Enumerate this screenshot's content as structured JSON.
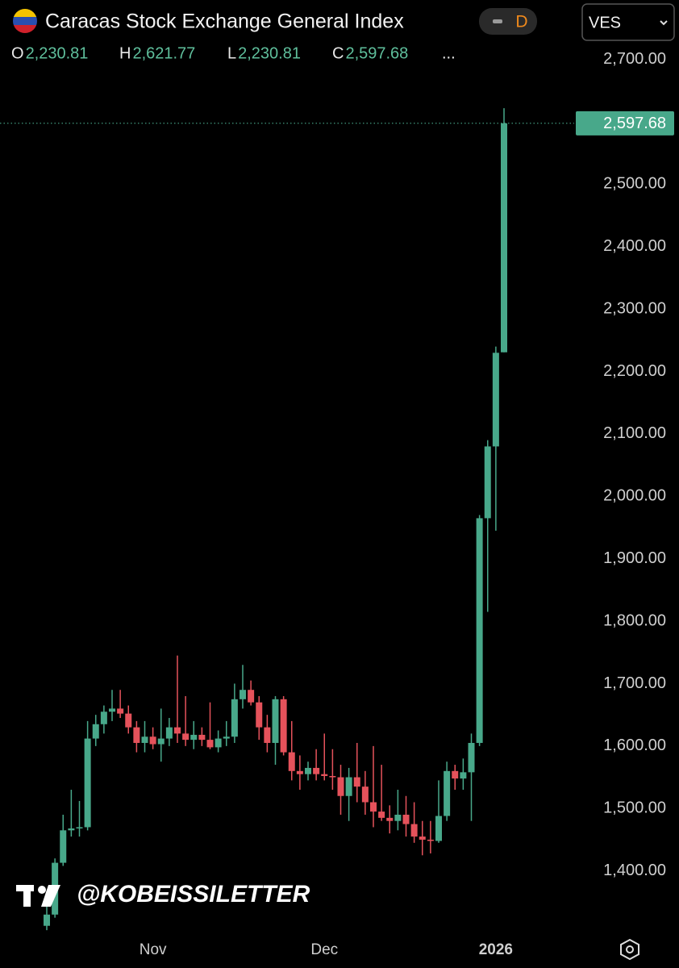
{
  "header": {
    "title": "Caracas Stock Exchange General Index",
    "interval": "D",
    "currency": "VES",
    "ohlc": [
      {
        "key": "O",
        "value": "2,230.81"
      },
      {
        "key": "H",
        "value": "2,621.77"
      },
      {
        "key": "L",
        "value": "2,230.81"
      },
      {
        "key": "C",
        "value": "2,597.68"
      }
    ],
    "more": "..."
  },
  "watermark": "@KOBEISSILETTER",
  "chart_data": {
    "type": "candlestick",
    "up_color": "#48a88a",
    "down_color": "#e5525b",
    "categories": [
      null,
      null,
      null,
      null,
      null,
      null,
      null,
      null,
      null,
      null,
      null,
      null,
      null,
      "Nov",
      null,
      null,
      null,
      null,
      null,
      null,
      null,
      null,
      null,
      null,
      null,
      null,
      null,
      null,
      null,
      null,
      null,
      null,
      null,
      null,
      "Dec",
      null,
      null,
      null,
      null,
      null,
      null,
      null,
      null,
      null,
      null,
      null,
      null,
      null,
      null,
      null,
      null,
      null,
      null,
      null,
      null,
      "2026",
      null
    ],
    "open": [
      1312,
      1330,
      1413,
      1465,
      1468,
      1470,
      1612,
      1635,
      1655,
      1660,
      1652,
      1630,
      1605,
      1615,
      1603,
      1612,
      1630,
      1620,
      1610,
      1618,
      1610,
      1598,
      1612,
      1615,
      1675,
      1690,
      1670,
      1630,
      1605,
      1675,
      1590,
      1560,
      1555,
      1565,
      1555,
      1552,
      1550,
      1520,
      1550,
      1535,
      1510,
      1495,
      1485,
      1480,
      1490,
      1475,
      1455,
      1450,
      1448,
      1488,
      1560,
      1548,
      1558,
      1605,
      1965,
      2080,
      2230.81
    ],
    "high": [
      1345,
      1420,
      1490,
      1530,
      1512,
      1640,
      1650,
      1665,
      1690,
      1690,
      1665,
      1640,
      1640,
      1630,
      1660,
      1645,
      1745,
      1680,
      1640,
      1630,
      1670,
      1625,
      1640,
      1700,
      1730,
      1705,
      1680,
      1650,
      1680,
      1680,
      1640,
      1585,
      1575,
      1595,
      1620,
      1595,
      1570,
      1565,
      1605,
      1560,
      1600,
      1570,
      1505,
      1530,
      1520,
      1510,
      1480,
      1480,
      1545,
      1575,
      1570,
      1580,
      1620,
      1970,
      2090,
      2240,
      2621.77
    ],
    "low": [
      1305,
      1325,
      1408,
      1455,
      1455,
      1465,
      1600,
      1620,
      1640,
      1645,
      1620,
      1590,
      1590,
      1595,
      1575,
      1600,
      1605,
      1600,
      1595,
      1600,
      1595,
      1590,
      1600,
      1605,
      1660,
      1665,
      1610,
      1590,
      1570,
      1585,
      1545,
      1530,
      1545,
      1545,
      1545,
      1530,
      1490,
      1480,
      1510,
      1490,
      1470,
      1480,
      1460,
      1465,
      1455,
      1445,
      1425,
      1428,
      1445,
      1480,
      1530,
      1530,
      1480,
      1600,
      1815,
      1945,
      2230.81
    ],
    "close": [
      1330,
      1413,
      1465,
      1468,
      1470,
      1612,
      1635,
      1655,
      1660,
      1652,
      1630,
      1605,
      1615,
      1603,
      1612,
      1630,
      1620,
      1610,
      1618,
      1610,
      1598,
      1612,
      1615,
      1675,
      1690,
      1670,
      1630,
      1605,
      1675,
      1590,
      1560,
      1555,
      1565,
      1555,
      1552,
      1550,
      1520,
      1550,
      1535,
      1510,
      1495,
      1485,
      1480,
      1490,
      1475,
      1455,
      1450,
      1448,
      1488,
      1560,
      1548,
      1558,
      1605,
      1965,
      2080,
      2230,
      2597.68
    ],
    "ylim": [
      1300,
      2790
    ],
    "yticks": [
      {
        "value": 1400,
        "label": "1,400.00"
      },
      {
        "value": 1500,
        "label": "1,500.00"
      },
      {
        "value": 1600,
        "label": "1,600.00"
      },
      {
        "value": 1700,
        "label": "1,700.00"
      },
      {
        "value": 1800,
        "label": "1,800.00"
      },
      {
        "value": 1900,
        "label": "1,900.00"
      },
      {
        "value": 2000,
        "label": "2,000.00"
      },
      {
        "value": 2100,
        "label": "2,100.00"
      },
      {
        "value": 2200,
        "label": "2,200.00"
      },
      {
        "value": 2300,
        "label": "2,300.00"
      },
      {
        "value": 2400,
        "label": "2,400.00"
      },
      {
        "value": 2500,
        "label": "2,500.00"
      },
      {
        "value": 2700,
        "label": "2,700.00"
      }
    ],
    "last_price": {
      "value": 2597.68,
      "label": "2,597.68"
    },
    "grid": false
  }
}
